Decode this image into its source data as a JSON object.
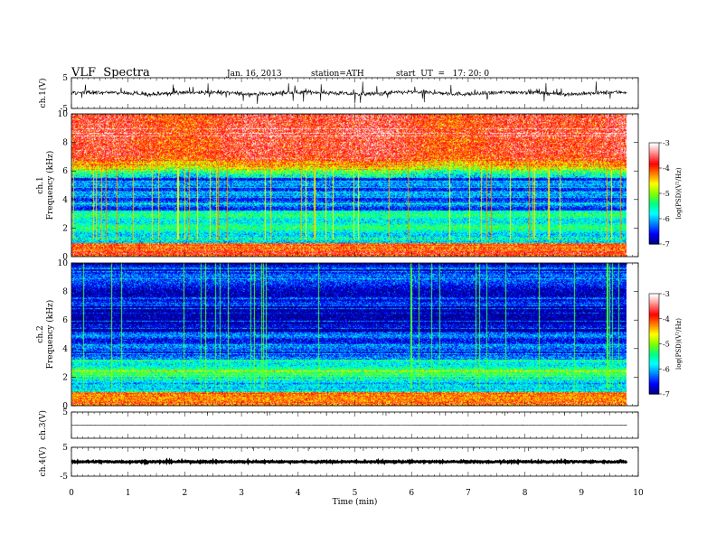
{
  "header": {
    "title": "VLF  Spectra",
    "date": "Jan. 16, 2013",
    "station": "station=ATH",
    "start": "start  UT  =   17: 20: 0"
  },
  "chart_data": [
    {
      "type": "line",
      "name": "ch1-waveform",
      "ylabel": "ch.1(V)",
      "ylim": [
        -5,
        5
      ],
      "yticks": [
        "5",
        "-5"
      ],
      "xlim": [
        0,
        10
      ],
      "data_extent": [
        0,
        9.8
      ],
      "amplitude": 1.8
    },
    {
      "type": "heatmap",
      "name": "ch1-spectrogram",
      "ylabel_channel": "ch.1",
      "ylabel": "Frequency  (kHz)",
      "ylim": [
        0,
        10
      ],
      "yticks": [
        "0",
        "2",
        "4",
        "6",
        "8",
        "10"
      ],
      "xlim": [
        0,
        10
      ],
      "data_extent": [
        0,
        9.8
      ],
      "colorbar": {
        "label": "log(PSD)(V²/Hz)",
        "range": [
          -7,
          -3
        ],
        "ticks": [
          "-7",
          "-6",
          "-5",
          "-4",
          "-3"
        ]
      }
    },
    {
      "type": "heatmap",
      "name": "ch2-spectrogram",
      "ylabel_channel": "ch.2",
      "ylabel": "Frequency  (kHz)",
      "ylim": [
        0,
        10
      ],
      "yticks": [
        "0",
        "2",
        "4",
        "6",
        "8",
        "10"
      ],
      "xlim": [
        0,
        10
      ],
      "data_extent": [
        0,
        9.8
      ],
      "colorbar": {
        "label": "log(PSD)(V²/Hz)",
        "range": [
          -7,
          -3
        ],
        "ticks": [
          "-7",
          "-6",
          "-5",
          "-4",
          "-3"
        ]
      }
    },
    {
      "type": "line",
      "name": "ch3-waveform",
      "ylabel": "ch.3(V)",
      "ylim": [
        -5,
        5
      ],
      "yticks": [
        "5"
      ],
      "xlim": [
        0,
        10
      ],
      "data_extent": [
        0,
        9.8
      ]
    },
    {
      "type": "line",
      "name": "ch4-waveform",
      "ylabel": "ch.4(V)",
      "ylim": [
        -5,
        5
      ],
      "yticks": [
        "5",
        "-5"
      ],
      "xlim": [
        0,
        10
      ],
      "data_extent": [
        0,
        9.8
      ]
    }
  ],
  "xaxis": {
    "label": "Time  (min)",
    "ticks": [
      "0",
      "1",
      "2",
      "3",
      "4",
      "5",
      "6",
      "7",
      "8",
      "9",
      "10"
    ]
  },
  "colormap": [
    "#000080",
    "#0000ff",
    "#0080ff",
    "#00ffff",
    "#00ff80",
    "#80ff00",
    "#ffff00",
    "#ff8000",
    "#ff0000",
    "#ff8080",
    "#ffffff"
  ]
}
